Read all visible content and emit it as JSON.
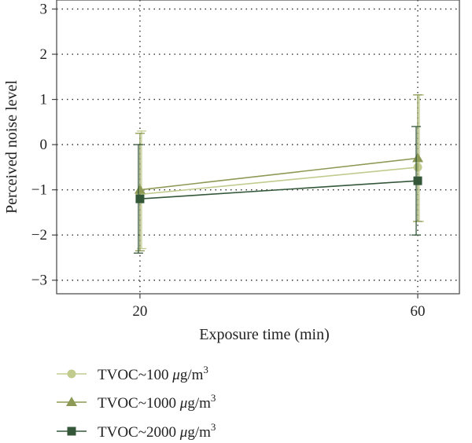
{
  "chart_data": {
    "type": "line",
    "x": [
      20,
      60
    ],
    "xlabel": "Exposure time (min)",
    "ylabel": "Perceived noise level",
    "xlim": [
      8,
      66
    ],
    "ylim": [
      -3.3,
      3.2
    ],
    "x_ticks": [
      "20",
      "60"
    ],
    "y_ticks": [
      "3",
      "2",
      "1",
      "0",
      "−1",
      "−2",
      "−3"
    ],
    "y_tick_values": [
      3,
      2,
      1,
      0,
      -1,
      -2,
      -3
    ],
    "grid": true,
    "legend_position": "bottom-left",
    "series": [
      {
        "name": "TVOC~100 μg/m³",
        "label_main": "TVOC~100 ",
        "label_unit": "g/m",
        "label_exp": "3",
        "marker": "circle",
        "color": "#c2cb8e",
        "values": [
          -1.1,
          -0.5
        ],
        "err_low": [
          -2.3,
          -1.7
        ],
        "err_high": [
          0.3,
          1.1
        ]
      },
      {
        "name": "TVOC~1000 μg/m³",
        "label_main": "TVOC~1000 ",
        "label_unit": "g/m",
        "label_exp": "3",
        "marker": "triangle",
        "color": "#8c9a55",
        "values": [
          -1.0,
          -0.3
        ],
        "err_low": [
          -2.35,
          -1.7
        ],
        "err_high": [
          0.25,
          1.1
        ]
      },
      {
        "name": "TVOC~2000 μg/m³",
        "label_main": "TVOC~2000 ",
        "label_unit": "g/m",
        "label_exp": "3",
        "marker": "square",
        "color": "#34573a",
        "values": [
          -1.2,
          -0.8
        ],
        "err_low": [
          -2.4,
          -2.0
        ],
        "err_high": [
          0.0,
          0.4
        ]
      }
    ]
  },
  "legend": {
    "mu_symbol": "μ"
  }
}
